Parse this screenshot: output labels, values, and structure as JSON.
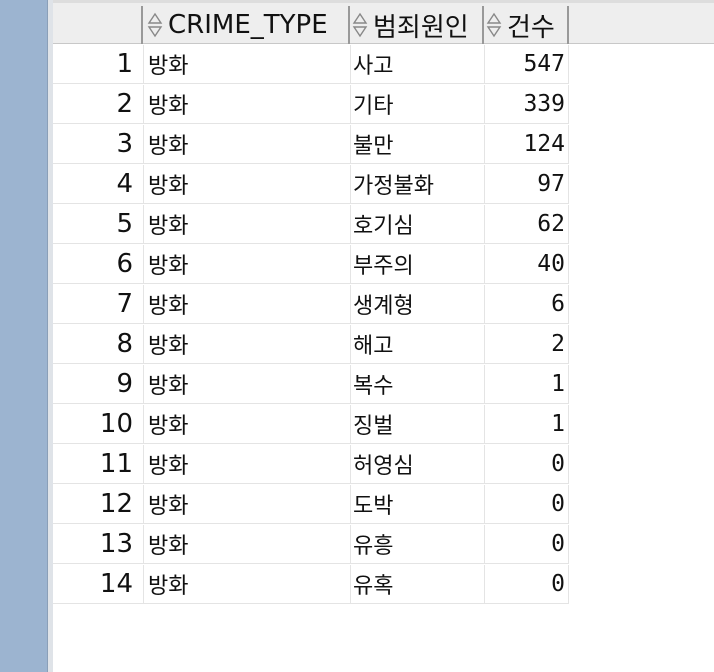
{
  "columns": {
    "crime_type": "CRIME_TYPE",
    "cause": "범죄원인",
    "count": "건수"
  },
  "rows": [
    {
      "num": "1",
      "type": "방화",
      "cause": "사고",
      "count": "547"
    },
    {
      "num": "2",
      "type": "방화",
      "cause": "기타",
      "count": "339"
    },
    {
      "num": "3",
      "type": "방화",
      "cause": "불만",
      "count": "124"
    },
    {
      "num": "4",
      "type": "방화",
      "cause": "가정불화",
      "count": "97"
    },
    {
      "num": "5",
      "type": "방화",
      "cause": "호기심",
      "count": "62"
    },
    {
      "num": "6",
      "type": "방화",
      "cause": "부주의",
      "count": "40"
    },
    {
      "num": "7",
      "type": "방화",
      "cause": "생계형",
      "count": "6"
    },
    {
      "num": "8",
      "type": "방화",
      "cause": "해고",
      "count": "2"
    },
    {
      "num": "9",
      "type": "방화",
      "cause": "복수",
      "count": "1"
    },
    {
      "num": "10",
      "type": "방화",
      "cause": "징벌",
      "count": "1"
    },
    {
      "num": "11",
      "type": "방화",
      "cause": "허영심",
      "count": "0"
    },
    {
      "num": "12",
      "type": "방화",
      "cause": "도박",
      "count": "0"
    },
    {
      "num": "13",
      "type": "방화",
      "cause": "유흥",
      "count": "0"
    },
    {
      "num": "14",
      "type": "방화",
      "cause": "유혹",
      "count": "0"
    }
  ]
}
